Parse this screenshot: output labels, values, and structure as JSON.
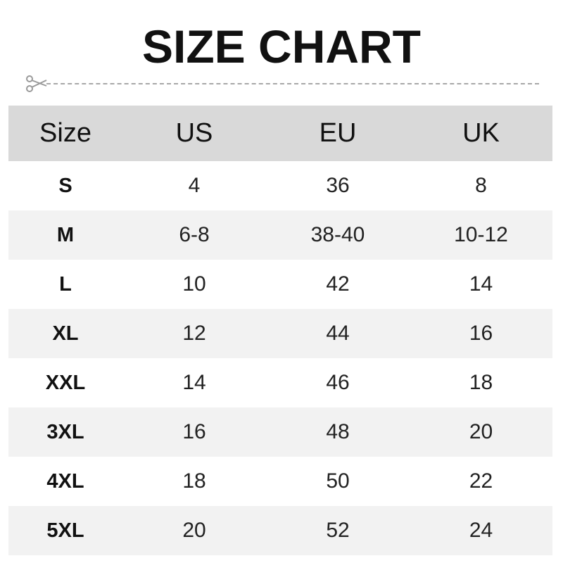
{
  "title": "SIZE CHART",
  "icons": {
    "cut": "scissors-icon"
  },
  "colors": {
    "header_bg": "#d9d9d9",
    "stripe_bg": "#f2f2f2",
    "text": "#111111"
  },
  "table": {
    "headers": [
      "Size",
      "US",
      "EU",
      "UK"
    ],
    "rows": [
      [
        "S",
        "4",
        "36",
        "8"
      ],
      [
        "M",
        "6-8",
        "38-40",
        "10-12"
      ],
      [
        "L",
        "10",
        "42",
        "14"
      ],
      [
        "XL",
        "12",
        "44",
        "16"
      ],
      [
        "XXL",
        "14",
        "46",
        "18"
      ],
      [
        "3XL",
        "16",
        "48",
        "20"
      ],
      [
        "4XL",
        "18",
        "50",
        "22"
      ],
      [
        "5XL",
        "20",
        "52",
        "24"
      ]
    ]
  }
}
